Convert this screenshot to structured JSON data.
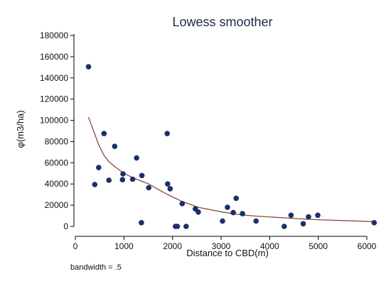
{
  "chart_data": {
    "type": "scatter",
    "title": "Lowess smoother",
    "xlabel": "Distance to CBD(m)",
    "ylabel": "φ(m3/ha)",
    "note": "bandwidth = .5",
    "xlim": [
      0,
      6300
    ],
    "ylim": [
      0,
      185000
    ],
    "xticks": [
      0,
      1000,
      2000,
      3000,
      4000,
      5000,
      6000
    ],
    "yticks": [
      0,
      20000,
      40000,
      60000,
      80000,
      100000,
      120000,
      140000,
      160000,
      180000
    ],
    "grid": false,
    "colors": {
      "points": "#1a2f6b",
      "line": "#8b4a3c",
      "axis": "#000000"
    },
    "points": [
      {
        "x": 270,
        "y": 150500
      },
      {
        "x": 400,
        "y": 39500
      },
      {
        "x": 480,
        "y": 55500
      },
      {
        "x": 590,
        "y": 87500
      },
      {
        "x": 690,
        "y": 43500
      },
      {
        "x": 810,
        "y": 75500
      },
      {
        "x": 970,
        "y": 44000
      },
      {
        "x": 980,
        "y": 49500
      },
      {
        "x": 1180,
        "y": 44500
      },
      {
        "x": 1260,
        "y": 64500
      },
      {
        "x": 1370,
        "y": 48000
      },
      {
        "x": 1360,
        "y": 3500
      },
      {
        "x": 1510,
        "y": 36500
      },
      {
        "x": 1890,
        "y": 87500
      },
      {
        "x": 1900,
        "y": 40000
      },
      {
        "x": 1950,
        "y": 35500
      },
      {
        "x": 2060,
        "y": 0
      },
      {
        "x": 2100,
        "y": 0
      },
      {
        "x": 2200,
        "y": 21500
      },
      {
        "x": 2280,
        "y": 0
      },
      {
        "x": 2470,
        "y": 16500
      },
      {
        "x": 2530,
        "y": 13500
      },
      {
        "x": 3030,
        "y": 5000
      },
      {
        "x": 3130,
        "y": 18000
      },
      {
        "x": 3250,
        "y": 13000
      },
      {
        "x": 3310,
        "y": 26500
      },
      {
        "x": 3440,
        "y": 12000
      },
      {
        "x": 3720,
        "y": 5000
      },
      {
        "x": 4300,
        "y": 0
      },
      {
        "x": 4440,
        "y": 10500
      },
      {
        "x": 4690,
        "y": 2500
      },
      {
        "x": 4800,
        "y": 9000
      },
      {
        "x": 4990,
        "y": 10500
      },
      {
        "x": 6150,
        "y": 3500
      }
    ],
    "lowess": [
      {
        "x": 270,
        "y": 103000
      },
      {
        "x": 400,
        "y": 87000
      },
      {
        "x": 480,
        "y": 77000
      },
      {
        "x": 590,
        "y": 67000
      },
      {
        "x": 690,
        "y": 61000
      },
      {
        "x": 810,
        "y": 56500
      },
      {
        "x": 980,
        "y": 50500
      },
      {
        "x": 1180,
        "y": 46000
      },
      {
        "x": 1370,
        "y": 42500
      },
      {
        "x": 1510,
        "y": 40000
      },
      {
        "x": 1700,
        "y": 35000
      },
      {
        "x": 1900,
        "y": 30000
      },
      {
        "x": 2060,
        "y": 26500
      },
      {
        "x": 2200,
        "y": 23500
      },
      {
        "x": 2470,
        "y": 19000
      },
      {
        "x": 2530,
        "y": 18000
      },
      {
        "x": 3030,
        "y": 13500
      },
      {
        "x": 3250,
        "y": 12000
      },
      {
        "x": 3440,
        "y": 10800
      },
      {
        "x": 3720,
        "y": 9700
      },
      {
        "x": 4300,
        "y": 8000
      },
      {
        "x": 4690,
        "y": 7000
      },
      {
        "x": 4990,
        "y": 6300
      },
      {
        "x": 6150,
        "y": 4500
      }
    ]
  }
}
